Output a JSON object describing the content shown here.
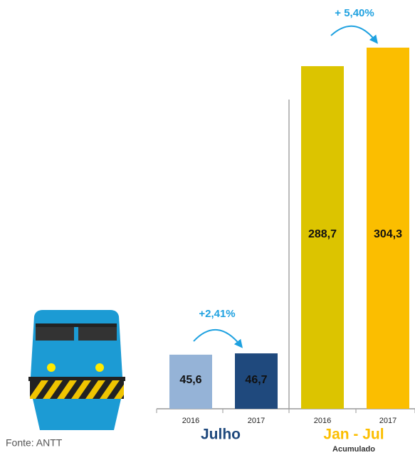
{
  "chart_data": {
    "type": "bar",
    "categories": [
      "2016",
      "2017",
      "2016",
      "2017"
    ],
    "values": [
      45.6,
      46.7,
      288.7,
      304.3
    ],
    "value_labels": [
      "45,6",
      "46,7",
      "288,7",
      "304,3"
    ],
    "colors": [
      "#95b3d7",
      "#1f497d",
      "#dcc400",
      "#fbbe00"
    ],
    "ylim": [
      0,
      310
    ],
    "groups": [
      {
        "label": "Julho",
        "color": "#1f497d"
      },
      {
        "label": "Jan - Jul",
        "sublabel": "Acumulado",
        "color": "#fbbe00"
      }
    ],
    "annotations": [
      "+2,41%",
      "+ 5,40%"
    ],
    "source": "Fonte: ANTT"
  }
}
